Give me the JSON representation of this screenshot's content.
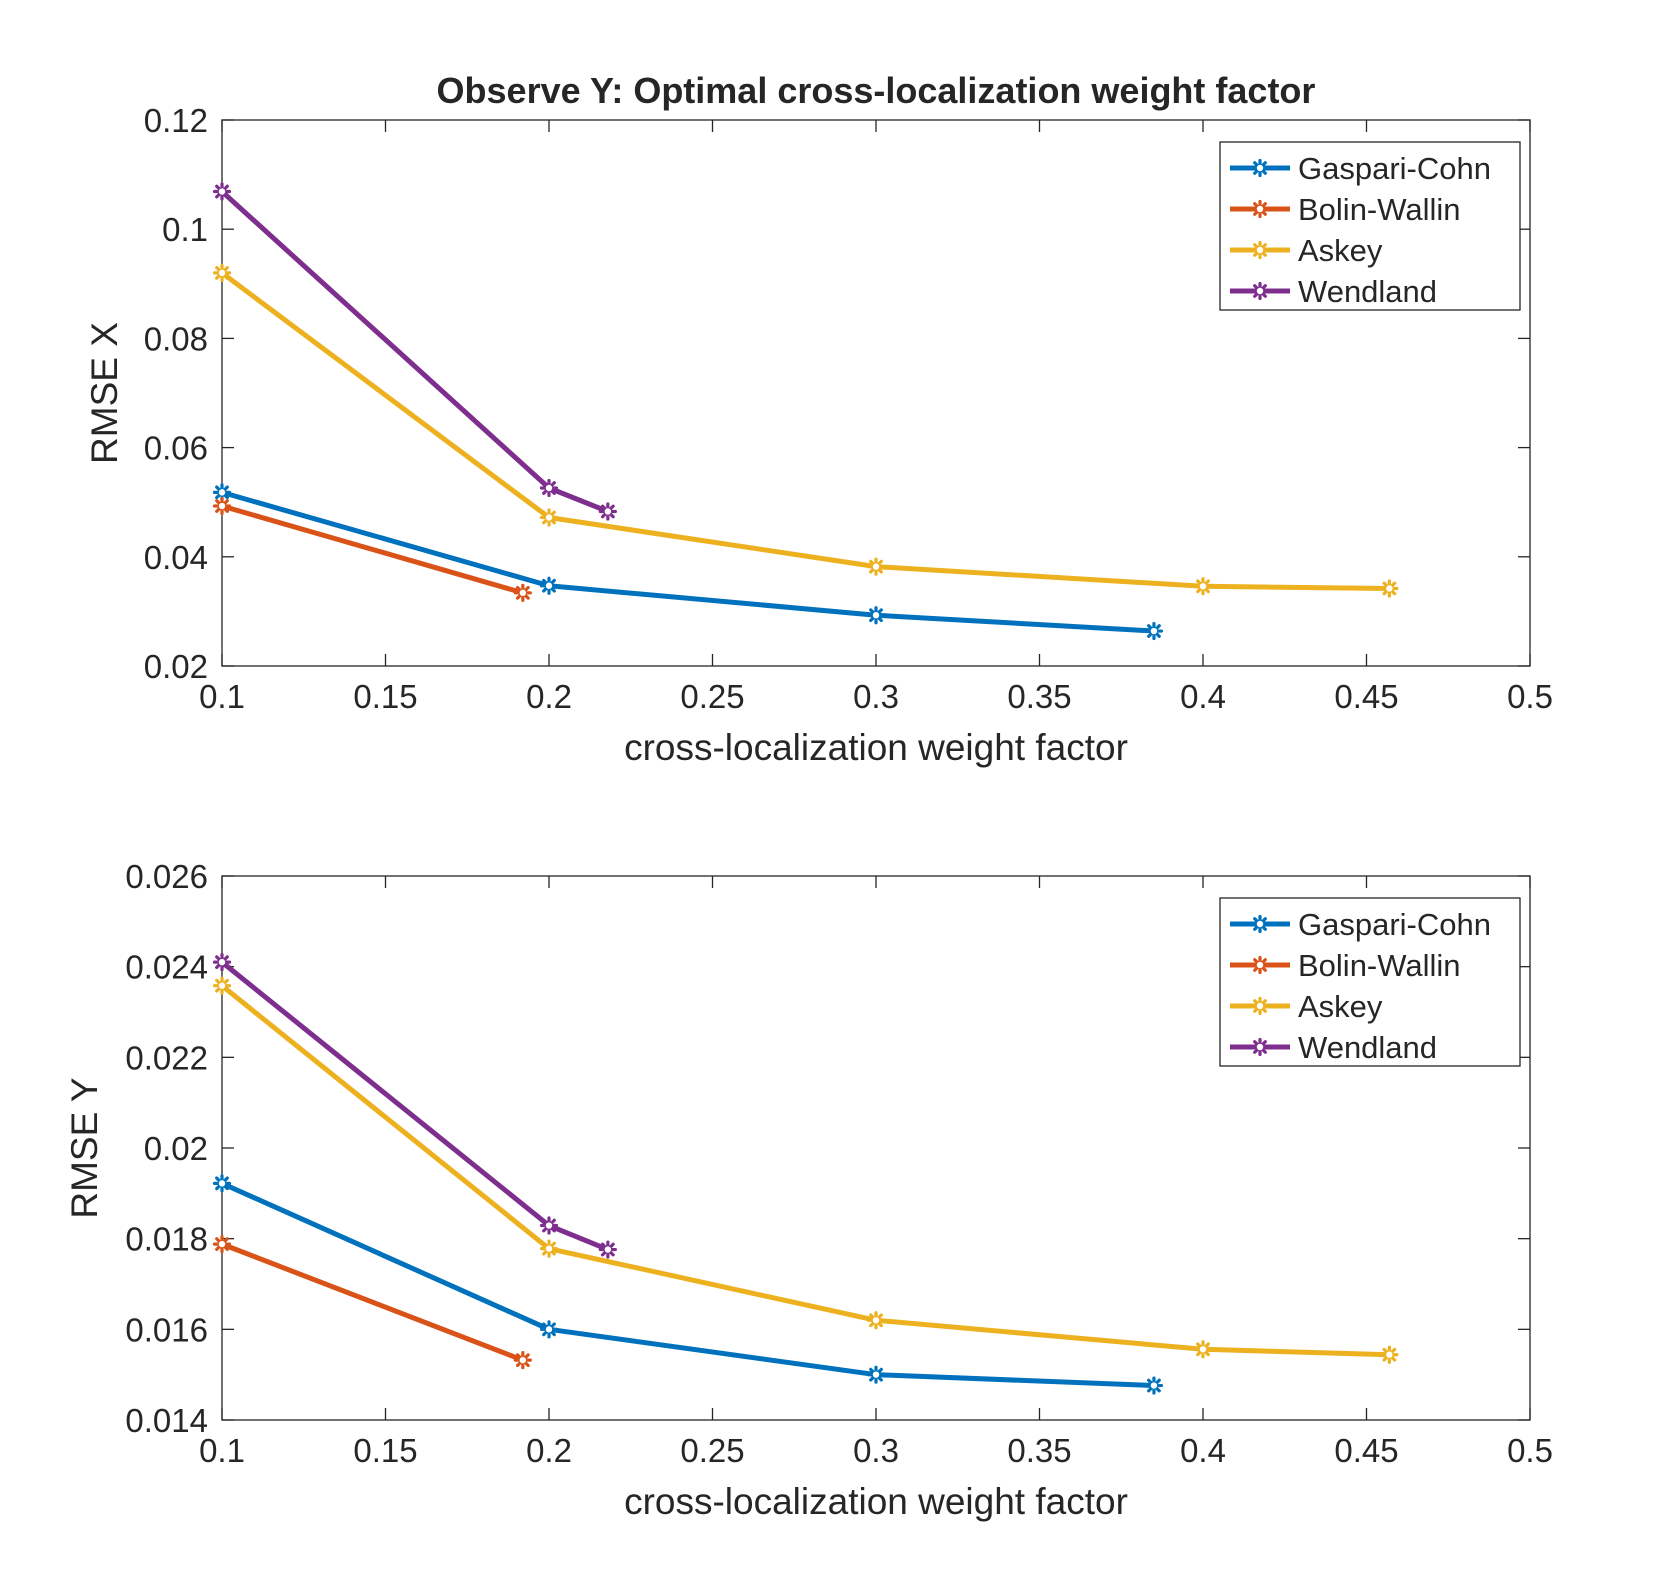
{
  "figure_title": "Observe Y: Optimal cross-localization weight factor",
  "colors": {
    "Gaspari-Cohn": "#0072BD",
    "Bolin-Wallin": "#D95319",
    "Askey": "#EDB120",
    "Wendland": "#7E2F8E",
    "axis": "#262626",
    "background": "#ffffff"
  },
  "chart_data": [
    {
      "type": "line",
      "title": "Observe Y: Optimal cross-localization weight factor",
      "xlabel": "cross-localization weight factor",
      "ylabel": "RMSE X",
      "xlim": [
        0.1,
        0.5
      ],
      "ylim": [
        0.02,
        0.12
      ],
      "xticks": [
        "0.1",
        "0.15",
        "0.2",
        "0.25",
        "0.3",
        "0.35",
        "0.4",
        "0.45",
        "0.5"
      ],
      "yticks": [
        "0.02",
        "0.04",
        "0.06",
        "0.08",
        "0.1",
        "0.12"
      ],
      "grid": false,
      "legend_position": "top-right",
      "series": [
        {
          "name": "Gaspari-Cohn",
          "x": [
            0.1,
            0.2,
            0.3,
            0.385
          ],
          "y": [
            0.0518,
            0.0347,
            0.0293,
            0.0264
          ]
        },
        {
          "name": "Bolin-Wallin",
          "x": [
            0.1,
            0.192
          ],
          "y": [
            0.0493,
            0.0334
          ]
        },
        {
          "name": "Askey",
          "x": [
            0.1,
            0.2,
            0.3,
            0.4,
            0.457
          ],
          "y": [
            0.092,
            0.0472,
            0.0382,
            0.0346,
            0.0342
          ]
        },
        {
          "name": "Wendland",
          "x": [
            0.1,
            0.2,
            0.218
          ],
          "y": [
            0.1069,
            0.0526,
            0.0483
          ]
        }
      ]
    },
    {
      "type": "line",
      "title": "",
      "xlabel": "cross-localization weight factor",
      "ylabel": "RMSE Y",
      "xlim": [
        0.1,
        0.5
      ],
      "ylim": [
        0.014,
        0.026
      ],
      "xticks": [
        "0.1",
        "0.15",
        "0.2",
        "0.25",
        "0.3",
        "0.35",
        "0.4",
        "0.45",
        "0.5"
      ],
      "yticks": [
        "0.014",
        "0.016",
        "0.018",
        "0.02",
        "0.022",
        "0.024",
        "0.026"
      ],
      "grid": false,
      "legend_position": "top-right",
      "series": [
        {
          "name": "Gaspari-Cohn",
          "x": [
            0.1,
            0.2,
            0.3,
            0.385
          ],
          "y": [
            0.01922,
            0.016,
            0.015,
            0.01476
          ]
        },
        {
          "name": "Bolin-Wallin",
          "x": [
            0.1,
            0.192
          ],
          "y": [
            0.01788,
            0.01532
          ]
        },
        {
          "name": "Askey",
          "x": [
            0.1,
            0.2,
            0.3,
            0.4,
            0.457
          ],
          "y": [
            0.02358,
            0.01778,
            0.0162,
            0.01556,
            0.01544
          ]
        },
        {
          "name": "Wendland",
          "x": [
            0.1,
            0.2,
            0.218
          ],
          "y": [
            0.0241,
            0.01829,
            0.01776
          ]
        }
      ]
    }
  ]
}
